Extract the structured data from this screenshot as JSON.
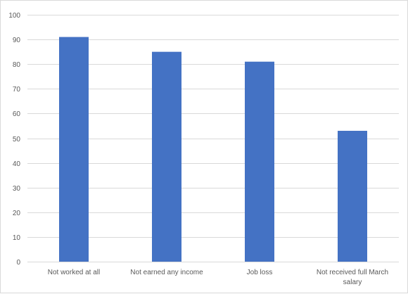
{
  "chart_data": {
    "type": "bar",
    "categories": [
      [
        "Not worked at all"
      ],
      [
        "Not earned any income"
      ],
      [
        "Job loss"
      ],
      [
        "Not received full March",
        "salary"
      ]
    ],
    "values": [
      91,
      85,
      81,
      53
    ],
    "title": "",
    "xlabel": "",
    "ylabel": "",
    "ylim": [
      0,
      100
    ],
    "yticks": [
      0,
      10,
      20,
      30,
      40,
      50,
      60,
      70,
      80,
      90,
      100
    ],
    "grid": true,
    "legend": "none",
    "bar_color": "#4472c4",
    "grid_color": "#d9d9d9"
  }
}
